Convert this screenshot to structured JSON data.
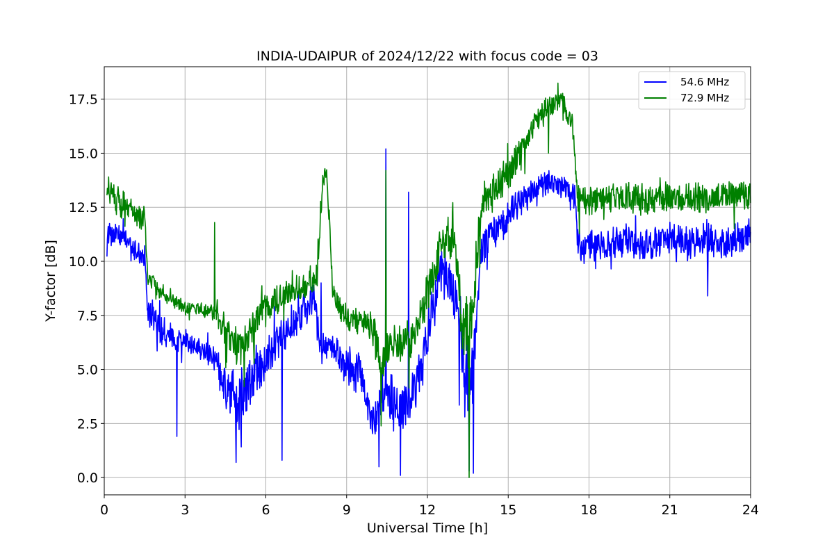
{
  "chart_data": {
    "type": "line",
    "title": "INDIA-UDAIPUR of 2024/12/22 with focus code = 03",
    "xlabel": "Universal Time [h]",
    "ylabel": "Y-factor [dB]",
    "xlim": [
      0,
      24
    ],
    "ylim": [
      -0.8,
      19.0
    ],
    "xticks": [
      0,
      3,
      6,
      9,
      12,
      15,
      18,
      21,
      24
    ],
    "xtick_labels": [
      "0",
      "3",
      "6",
      "9",
      "12",
      "15",
      "18",
      "21",
      "24"
    ],
    "yticks": [
      0.0,
      2.5,
      5.0,
      7.5,
      10.0,
      12.5,
      15.0,
      17.5
    ],
    "ytick_labels": [
      "0.0",
      "2.5",
      "5.0",
      "7.5",
      "10.0",
      "12.5",
      "15.0",
      "17.5"
    ],
    "grid": true,
    "legend_position": "top-right",
    "series": [
      {
        "name": "54.6 MHz",
        "color": "#0000ff",
        "x": [
          0.1,
          0.5,
          1.0,
          1.5,
          1.6,
          2.0,
          2.5,
          3.0,
          3.5,
          4.0,
          4.5,
          5.0,
          5.5,
          6.0,
          6.5,
          7.0,
          7.5,
          7.8,
          8.0,
          8.5,
          9.0,
          9.5,
          10.0,
          10.4,
          10.5,
          11.0,
          11.3,
          11.5,
          12.0,
          12.5,
          13.0,
          13.4,
          13.6,
          14.0,
          14.5,
          15.0,
          15.5,
          16.0,
          16.5,
          17.0,
          17.5,
          17.6,
          18.0,
          18.5,
          19.0,
          19.5,
          20.0,
          20.5,
          21.0,
          21.5,
          22.0,
          22.5,
          23.0,
          23.5,
          24.0
        ],
        "y": [
          11.3,
          11.2,
          10.6,
          10.3,
          7.8,
          7.0,
          6.5,
          6.2,
          6.0,
          5.7,
          4.0,
          3.5,
          4.8,
          5.5,
          6.5,
          7.2,
          7.8,
          8.2,
          6.1,
          6.0,
          5.2,
          4.8,
          2.5,
          4.0,
          3.6,
          3.2,
          3.5,
          3.8,
          6.8,
          9.5,
          8.5,
          4.5,
          4.0,
          10.5,
          11.5,
          12.2,
          12.8,
          13.3,
          13.7,
          13.4,
          13.0,
          10.5,
          10.8,
          10.7,
          10.9,
          11.1,
          10.6,
          11.0,
          11.1,
          10.8,
          11.0,
          10.9,
          10.7,
          11.0,
          11.2
        ],
        "noise": [
          0.5,
          0.6,
          0.6,
          0.6,
          0.8,
          0.8,
          0.6,
          0.5,
          0.5,
          0.6,
          1.3,
          1.5,
          1.2,
          1.0,
          0.9,
          0.9,
          0.8,
          0.9,
          0.6,
          0.6,
          1.0,
          1.0,
          1.2,
          1.3,
          1.3,
          1.3,
          1.2,
          1.2,
          1.3,
          1.3,
          1.4,
          2.0,
          2.0,
          1.0,
          0.9,
          0.8,
          0.7,
          0.6,
          0.6,
          0.6,
          0.6,
          0.8,
          0.8,
          0.8,
          0.8,
          0.8,
          0.8,
          0.8,
          0.8,
          0.8,
          0.8,
          0.8,
          0.8,
          0.8,
          0.8
        ],
        "spikes": [
          [
            2.7,
            1.9
          ],
          [
            4.9,
            0.7
          ],
          [
            6.6,
            0.8
          ],
          [
            10.2,
            0.5
          ],
          [
            10.45,
            15.2
          ],
          [
            11.0,
            0.1
          ],
          [
            11.3,
            13.2
          ],
          [
            13.55,
            0.3
          ],
          [
            13.7,
            0.2
          ],
          [
            22.4,
            8.4
          ],
          [
            8.05,
            9.0
          ]
        ]
      },
      {
        "name": "72.9 MHz",
        "color": "#008000",
        "x": [
          0.1,
          0.5,
          1.0,
          1.5,
          1.6,
          2.0,
          2.5,
          3.0,
          3.5,
          4.0,
          4.5,
          5.0,
          5.5,
          6.0,
          6.5,
          7.0,
          7.5,
          7.9,
          8.1,
          8.25,
          8.5,
          9.0,
          9.5,
          10.0,
          10.3,
          10.5,
          11.0,
          11.5,
          12.0,
          12.5,
          13.0,
          13.3,
          13.6,
          14.0,
          14.5,
          15.0,
          15.5,
          16.0,
          16.5,
          17.0,
          17.4,
          17.6,
          18.0,
          18.5,
          19.0,
          19.5,
          20.0,
          20.5,
          21.0,
          21.5,
          22.0,
          22.5,
          23.0,
          23.5,
          24.0
        ],
        "y": [
          13.3,
          12.8,
          12.3,
          12.0,
          9.4,
          8.7,
          8.2,
          7.9,
          7.8,
          7.7,
          6.8,
          6.0,
          7.0,
          7.8,
          8.3,
          8.6,
          8.9,
          9.5,
          13.5,
          14.3,
          8.5,
          7.4,
          7.2,
          6.8,
          5.0,
          6.0,
          6.2,
          6.5,
          8.5,
          11.0,
          11.5,
          7.0,
          6.5,
          12.5,
          13.5,
          14.0,
          15.2,
          16.5,
          17.2,
          17.4,
          16.2,
          13.0,
          12.8,
          12.9,
          13.0,
          13.0,
          12.7,
          13.0,
          13.0,
          12.9,
          13.0,
          12.8,
          13.1,
          13.0,
          13.0
        ],
        "noise": [
          0.7,
          0.7,
          0.6,
          0.6,
          0.5,
          0.4,
          0.3,
          0.3,
          0.3,
          0.4,
          0.8,
          1.0,
          0.9,
          0.8,
          0.7,
          0.7,
          0.7,
          0.8,
          0.6,
          0.4,
          0.7,
          0.6,
          0.6,
          0.9,
          1.2,
          1.0,
          0.9,
          0.9,
          1.0,
          1.2,
          1.3,
          1.5,
          1.8,
          1.0,
          0.9,
          0.8,
          0.7,
          0.6,
          0.5,
          0.5,
          0.6,
          0.8,
          0.7,
          0.7,
          0.7,
          0.7,
          0.7,
          0.7,
          0.7,
          0.7,
          0.7,
          0.7,
          0.7,
          0.7,
          0.7
        ],
        "spikes": [
          [
            4.1,
            11.8
          ],
          [
            10.45,
            14.2
          ],
          [
            13.55,
            0.0
          ],
          [
            16.5,
            15.0
          ],
          [
            5.2,
            4.2
          ]
        ]
      }
    ]
  }
}
